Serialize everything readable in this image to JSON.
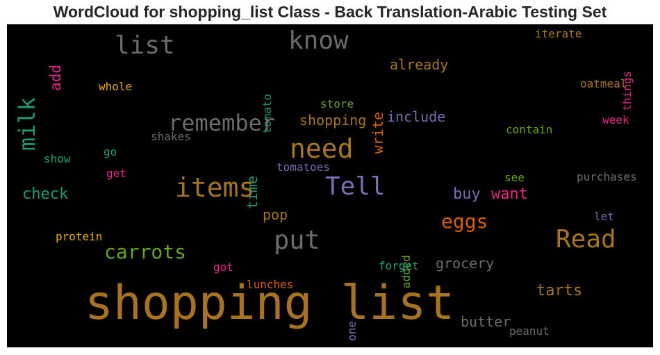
{
  "chart_data": {
    "type": "wordcloud",
    "title": "WordCloud for shopping_list Class - Back Translation-Arabic Testing Set",
    "background": "#000000",
    "words": [
      {
        "text": "shopping list",
        "color": "#a77320",
        "orientation": "horizontal"
      },
      {
        "text": "know",
        "color": "#6b6b6b",
        "orientation": "horizontal"
      },
      {
        "text": "list",
        "color": "#6b6b6b",
        "orientation": "horizontal"
      },
      {
        "text": "milk",
        "color": "#1b9e77",
        "orientation": "vertical"
      },
      {
        "text": "add",
        "color": "#e7298a",
        "orientation": "vertical"
      },
      {
        "text": "iterate",
        "color": "#a6761d",
        "orientation": "horizontal"
      },
      {
        "text": "things",
        "color": "#e7298a",
        "orientation": "vertical"
      },
      {
        "text": "tomato",
        "color": "#1b9e77",
        "orientation": "vertical"
      },
      {
        "text": "already",
        "color": "#a6761d",
        "orientation": "horizontal"
      },
      {
        "text": "write",
        "color": "#d95f02",
        "orientation": "vertical"
      },
      {
        "text": "whole",
        "color": "#e6ab02",
        "orientation": "horizontal"
      },
      {
        "text": "oatmeal",
        "color": "#a6761d",
        "orientation": "horizontal"
      },
      {
        "text": "store",
        "color": "#66a61e",
        "orientation": "horizontal"
      },
      {
        "text": "remember",
        "color": "#6b6b6b",
        "orientation": "horizontal"
      },
      {
        "text": "shopping",
        "color": "#a6761d",
        "orientation": "horizontal"
      },
      {
        "text": "include",
        "color": "#7570b3",
        "orientation": "horizontal"
      },
      {
        "text": "week",
        "color": "#e7298a",
        "orientation": "horizontal"
      },
      {
        "text": "contain",
        "color": "#66a61e",
        "orientation": "horizontal"
      },
      {
        "text": "shakes",
        "color": "#6b6b6b",
        "orientation": "horizontal"
      },
      {
        "text": "need",
        "color": "#a6761d",
        "orientation": "horizontal"
      },
      {
        "text": "time",
        "color": "#1b9e77",
        "orientation": "vertical"
      },
      {
        "text": "go",
        "color": "#1b9e77",
        "orientation": "horizontal"
      },
      {
        "text": "show",
        "color": "#1b9e77",
        "orientation": "horizontal"
      },
      {
        "text": "tomatoes",
        "color": "#7570b3",
        "orientation": "horizontal"
      },
      {
        "text": "get",
        "color": "#e7298a",
        "orientation": "horizontal"
      },
      {
        "text": "items",
        "color": "#a6761d",
        "orientation": "horizontal"
      },
      {
        "text": "Tell",
        "color": "#7570b3",
        "orientation": "horizontal"
      },
      {
        "text": "see",
        "color": "#66a61e",
        "orientation": "horizontal"
      },
      {
        "text": "purchases",
        "color": "#6b6b6b",
        "orientation": "horizontal"
      },
      {
        "text": "check",
        "color": "#1b9e77",
        "orientation": "horizontal"
      },
      {
        "text": "buy",
        "color": "#7570b3",
        "orientation": "horizontal"
      },
      {
        "text": "want",
        "color": "#e7298a",
        "orientation": "horizontal"
      },
      {
        "text": "pop",
        "color": "#a6761d",
        "orientation": "horizontal"
      },
      {
        "text": "let",
        "color": "#7570b3",
        "orientation": "horizontal"
      },
      {
        "text": "eggs",
        "color": "#d95f02",
        "orientation": "horizontal"
      },
      {
        "text": "protein",
        "color": "#e6ab02",
        "orientation": "horizontal"
      },
      {
        "text": "put",
        "color": "#6b6b6b",
        "orientation": "horizontal"
      },
      {
        "text": "Read",
        "color": "#a6761d",
        "orientation": "horizontal"
      },
      {
        "text": "carrots",
        "color": "#66a61e",
        "orientation": "horizontal"
      },
      {
        "text": "added",
        "color": "#66a61e",
        "orientation": "vertical"
      },
      {
        "text": "grocery",
        "color": "#6b6b6b",
        "orientation": "horizontal"
      },
      {
        "text": "got",
        "color": "#e7298a",
        "orientation": "horizontal"
      },
      {
        "text": "forget",
        "color": "#1b9e77",
        "orientation": "horizontal"
      },
      {
        "text": "lunches",
        "color": "#d95f02",
        "orientation": "horizontal"
      },
      {
        "text": "tarts",
        "color": "#a6761d",
        "orientation": "horizontal"
      },
      {
        "text": "one",
        "color": "#7570b3",
        "orientation": "vertical"
      },
      {
        "text": "butter",
        "color": "#6b6b6b",
        "orientation": "horizontal"
      },
      {
        "text": "peanut",
        "color": "#6b6b6b",
        "orientation": "horizontal"
      }
    ]
  }
}
